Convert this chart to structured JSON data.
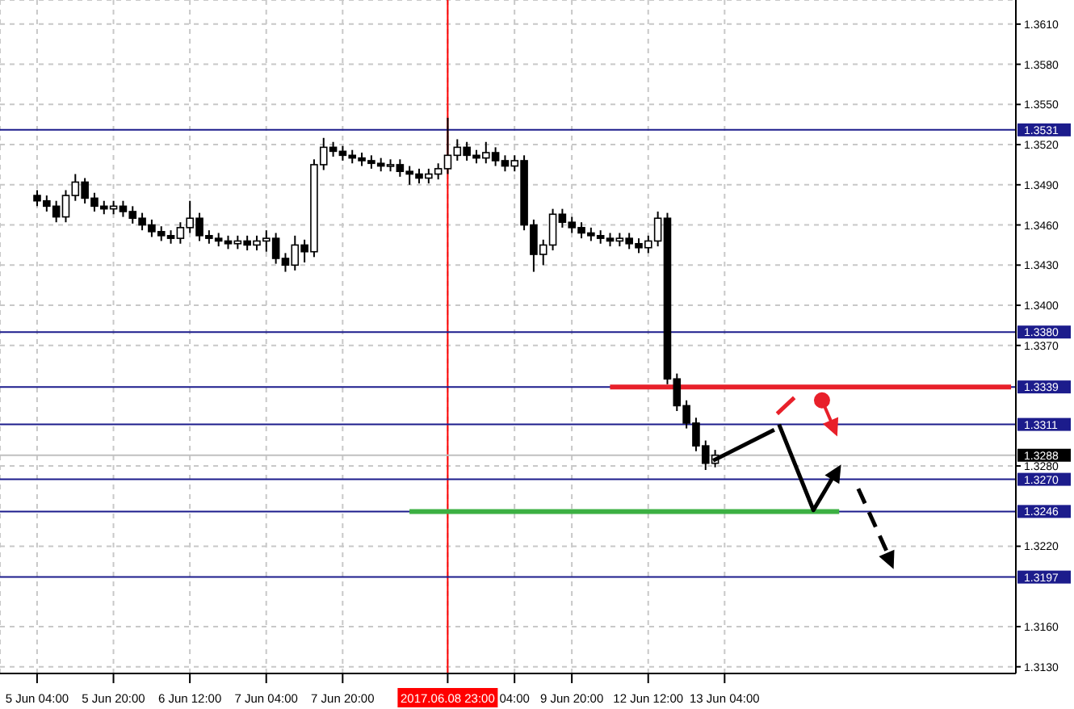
{
  "chart_data": {
    "type": "candlestick",
    "categories": [
      "5 Jun 04:00",
      null,
      null,
      null,
      null,
      null,
      null,
      null,
      "5 Jun 20:00",
      null,
      null,
      null,
      null,
      null,
      null,
      null,
      "6 Jun 12:00",
      null,
      null,
      null,
      null,
      null,
      null,
      null,
      "7 Jun 04:00",
      null,
      null,
      null,
      null,
      null,
      null,
      null,
      "7 Jun 20:00",
      null,
      null,
      null,
      null,
      null,
      null,
      null,
      null,
      null,
      null,
      "2017.06.08 23:00",
      null,
      null,
      null,
      null,
      null,
      null,
      "04:00",
      null,
      null,
      null,
      null,
      null,
      "9 Jun 20:00",
      null,
      null,
      null,
      null,
      null,
      null,
      null,
      "12 Jun 12:00",
      null,
      null,
      null,
      null,
      null,
      null,
      null,
      "13 Jun 04:00",
      null,
      null,
      null,
      null,
      null,
      null,
      null,
      null,
      null,
      null,
      null,
      null,
      null,
      null,
      null,
      null,
      null,
      null,
      null,
      null,
      null,
      null,
      null,
      null,
      null,
      null,
      null,
      null,
      null,
      null
    ],
    "ohlc": [
      [
        1.3482,
        1.3486,
        1.3474,
        1.3478
      ],
      [
        1.3478,
        1.3482,
        1.347,
        1.3474
      ],
      [
        1.3474,
        1.3478,
        1.3462,
        1.3466
      ],
      [
        1.3466,
        1.3486,
        1.3462,
        1.3482
      ],
      [
        1.3482,
        1.3498,
        1.3478,
        1.3492
      ],
      [
        1.3492,
        1.3495,
        1.3476,
        1.348
      ],
      [
        1.348,
        1.3484,
        1.347,
        1.3474
      ],
      [
        1.3474,
        1.3478,
        1.3468,
        1.3472
      ],
      [
        1.3472,
        1.3478,
        1.3468,
        1.3474
      ],
      [
        1.3474,
        1.3478,
        1.3466,
        1.347
      ],
      [
        1.347,
        1.3474,
        1.3461,
        1.3465
      ],
      [
        1.3465,
        1.3469,
        1.3456,
        1.346
      ],
      [
        1.346,
        1.3464,
        1.3451,
        1.3455
      ],
      [
        1.3455,
        1.3459,
        1.3448,
        1.3452
      ],
      [
        1.3452,
        1.3456,
        1.3446,
        1.345
      ],
      [
        1.345,
        1.3462,
        1.3446,
        1.3458
      ],
      [
        1.3458,
        1.3478,
        1.3454,
        1.3465
      ],
      [
        1.3465,
        1.3469,
        1.3448,
        1.3452
      ],
      [
        1.3452,
        1.3456,
        1.3446,
        1.345
      ],
      [
        1.345,
        1.3454,
        1.3444,
        1.3448
      ],
      [
        1.3448,
        1.3452,
        1.3442,
        1.3446
      ],
      [
        1.3446,
        1.3452,
        1.3442,
        1.3448
      ],
      [
        1.3448,
        1.3452,
        1.3441,
        1.3445
      ],
      [
        1.3445,
        1.3452,
        1.3441,
        1.3448
      ],
      [
        1.3448,
        1.3456,
        1.344,
        1.345
      ],
      [
        1.345,
        1.3454,
        1.3431,
        1.3435
      ],
      [
        1.3435,
        1.3439,
        1.3425,
        1.343
      ],
      [
        1.343,
        1.3452,
        1.3426,
        1.3445
      ],
      [
        1.3445,
        1.3449,
        1.3432,
        1.344
      ],
      [
        1.344,
        1.3509,
        1.3436,
        1.3505
      ],
      [
        1.3505,
        1.3525,
        1.3501,
        1.3518
      ],
      [
        1.3518,
        1.3522,
        1.3511,
        1.3515
      ],
      [
        1.3515,
        1.3519,
        1.3508,
        1.3512
      ],
      [
        1.3512,
        1.3516,
        1.3506,
        1.351
      ],
      [
        1.351,
        1.3514,
        1.3504,
        1.3508
      ],
      [
        1.3508,
        1.3512,
        1.3502,
        1.3506
      ],
      [
        1.3506,
        1.351,
        1.35,
        1.3504
      ],
      [
        1.3504,
        1.3509,
        1.35,
        1.3505
      ],
      [
        1.3505,
        1.3509,
        1.3496,
        1.35
      ],
      [
        1.35,
        1.3504,
        1.349,
        1.3498
      ],
      [
        1.3498,
        1.3502,
        1.3491,
        1.3495
      ],
      [
        1.3495,
        1.3502,
        1.3491,
        1.3498
      ],
      [
        1.3498,
        1.3506,
        1.3494,
        1.3502
      ],
      [
        1.3502,
        1.354,
        1.3498,
        1.3512
      ],
      [
        1.3512,
        1.3524,
        1.3508,
        1.3518
      ],
      [
        1.3518,
        1.3522,
        1.3508,
        1.3512
      ],
      [
        1.3512,
        1.3516,
        1.3506,
        1.351
      ],
      [
        1.351,
        1.3522,
        1.3506,
        1.3514
      ],
      [
        1.3514,
        1.3518,
        1.3504,
        1.3508
      ],
      [
        1.3508,
        1.3512,
        1.35,
        1.3504
      ],
      [
        1.3504,
        1.3512,
        1.35,
        1.3508
      ],
      [
        1.3508,
        1.3512,
        1.3456,
        1.346
      ],
      [
        1.346,
        1.3464,
        1.3425,
        1.3438
      ],
      [
        1.3438,
        1.3449,
        1.343,
        1.3445
      ],
      [
        1.3445,
        1.3472,
        1.3441,
        1.3468
      ],
      [
        1.3468,
        1.3472,
        1.3458,
        1.3462
      ],
      [
        1.3462,
        1.3466,
        1.3454,
        1.3458
      ],
      [
        1.3458,
        1.3462,
        1.345,
        1.3454
      ],
      [
        1.3454,
        1.3458,
        1.3448,
        1.3452
      ],
      [
        1.3452,
        1.3456,
        1.3446,
        1.345
      ],
      [
        1.345,
        1.3454,
        1.3444,
        1.3448
      ],
      [
        1.3448,
        1.3454,
        1.3444,
        1.345
      ],
      [
        1.345,
        1.3454,
        1.3442,
        1.3446
      ],
      [
        1.3446,
        1.345,
        1.3439,
        1.3443
      ],
      [
        1.3443,
        1.3452,
        1.3439,
        1.3448
      ],
      [
        1.3448,
        1.347,
        1.3444,
        1.3465
      ],
      [
        1.3465,
        1.3469,
        1.3341,
        1.3345
      ],
      [
        1.3345,
        1.3349,
        1.3321,
        1.3325
      ],
      [
        1.3325,
        1.3329,
        1.3308,
        1.3312
      ],
      [
        1.3312,
        1.3316,
        1.3291,
        1.3295
      ],
      [
        1.3295,
        1.3299,
        1.3277,
        1.3282
      ],
      [
        1.3282,
        1.3292,
        1.3279,
        1.3288
      ],
      null,
      null,
      null,
      null,
      null,
      null,
      null,
      null,
      null,
      null,
      null,
      null,
      null,
      null,
      null,
      null,
      null,
      null,
      null,
      null,
      null,
      null,
      null,
      null,
      null,
      null,
      null,
      null,
      null,
      null,
      null
    ],
    "series": [
      {
        "type": "line",
        "color": "#e8202a",
        "values": [
          null,
          null,
          null,
          null,
          null,
          null,
          null,
          null,
          null,
          null,
          null,
          null,
          null,
          null,
          null,
          null,
          null,
          null,
          null,
          null,
          null,
          null,
          null,
          null,
          null,
          null,
          null,
          null,
          null,
          null,
          null,
          null,
          null,
          null,
          null,
          null,
          null,
          null,
          null,
          null,
          null,
          null,
          null,
          null,
          null,
          null,
          null,
          null,
          null,
          null,
          null,
          null,
          null,
          null,
          null,
          null,
          null,
          null,
          null,
          null,
          1.3339,
          1.3339,
          1.3339,
          1.3339,
          1.3339,
          1.3339,
          1.3339,
          1.3339,
          1.3339,
          1.3339,
          1.3339,
          1.3339,
          1.3339,
          1.3339,
          1.3339,
          1.3339,
          1.3339,
          1.3339,
          1.3339,
          1.3339,
          1.3339,
          1.3339,
          1.3339,
          1.3339,
          1.3339,
          1.3339,
          1.3339,
          1.3339,
          1.3339,
          1.3339,
          1.3339,
          1.3339,
          1.3339,
          1.3339,
          1.3339,
          1.3339,
          1.3339,
          1.3339,
          1.3339,
          1.3339,
          1.3339,
          1.3339,
          1.3339
        ]
      },
      {
        "type": "line",
        "color": "#3cb043",
        "values": [
          null,
          null,
          null,
          null,
          null,
          null,
          null,
          null,
          null,
          null,
          null,
          null,
          null,
          null,
          null,
          null,
          null,
          null,
          null,
          null,
          null,
          null,
          null,
          null,
          null,
          null,
          null,
          null,
          null,
          null,
          null,
          null,
          null,
          null,
          null,
          null,
          null,
          null,
          null,
          1.3246,
          1.3246,
          1.3246,
          1.3246,
          1.3246,
          1.3246,
          1.3246,
          1.3246,
          1.3246,
          1.3246,
          1.3246,
          1.3246,
          1.3246,
          1.3246,
          1.3246,
          1.3246,
          1.3246,
          1.3246,
          1.3246,
          1.3246,
          1.3246,
          1.3246,
          1.3246,
          1.3246,
          1.3246,
          1.3246,
          1.3246,
          1.3246,
          1.3246,
          1.3246,
          1.3246,
          1.3246,
          1.3246,
          1.3246,
          1.3246,
          1.3246,
          1.3246,
          1.3246,
          1.3246,
          1.3246,
          1.3246,
          1.3246,
          1.3246,
          1.3246,
          1.3246,
          1.3246,
          null,
          null,
          null,
          null,
          null,
          null,
          null,
          null,
          null,
          null,
          null,
          null,
          null,
          null,
          null,
          null,
          null,
          null
        ]
      }
    ],
    "ylim": [
      1.3125,
      1.3628
    ],
    "yticks": [
      {
        "value": 1.361,
        "label": "1.3610"
      },
      {
        "value": 1.358,
        "label": "1.3580"
      },
      {
        "value": 1.355,
        "label": "1.3550"
      },
      {
        "value": 1.352,
        "label": "1.3520"
      },
      {
        "value": 1.349,
        "label": "1.3490"
      },
      {
        "value": 1.346,
        "label": "1.3460"
      },
      {
        "value": 1.343,
        "label": "1.3430"
      },
      {
        "value": 1.34,
        "label": "1.3400"
      },
      {
        "value": 1.337,
        "label": "1.3370"
      },
      {
        "value": 1.328,
        "label": "1.3280"
      },
      {
        "value": 1.322,
        "label": "1.3220"
      },
      {
        "value": 1.316,
        "label": "1.3160"
      },
      {
        "value": 1.313,
        "label": "1.3130"
      }
    ],
    "ref_lines": [
      {
        "axis": "y",
        "value": 1.3531,
        "label": "1.3531",
        "color": "#1c1c8c"
      },
      {
        "axis": "y",
        "value": 1.338,
        "label": "1.3380",
        "color": "#1c1c8c"
      },
      {
        "axis": "y",
        "value": 1.3339,
        "label": "1.3339",
        "color": "#1c1c8c"
      },
      {
        "axis": "y",
        "value": 1.3311,
        "label": "1.3311",
        "color": "#1c1c8c"
      },
      {
        "axis": "y",
        "value": 1.3288,
        "label": "1.3288",
        "color": "#c0c0c0"
      },
      {
        "axis": "y",
        "value": 1.327,
        "label": "1.3270",
        "color": "#1c1c8c"
      },
      {
        "axis": "y",
        "value": 1.3246,
        "label": "1.3246",
        "color": "#1c1c8c"
      },
      {
        "axis": "y",
        "value": 1.3197,
        "label": "1.3197",
        "color": "#1c1c8c"
      },
      {
        "axis": "x",
        "value": "2017.06.08 23:00",
        "color": "#ff0000"
      }
    ],
    "grid": true
  }
}
